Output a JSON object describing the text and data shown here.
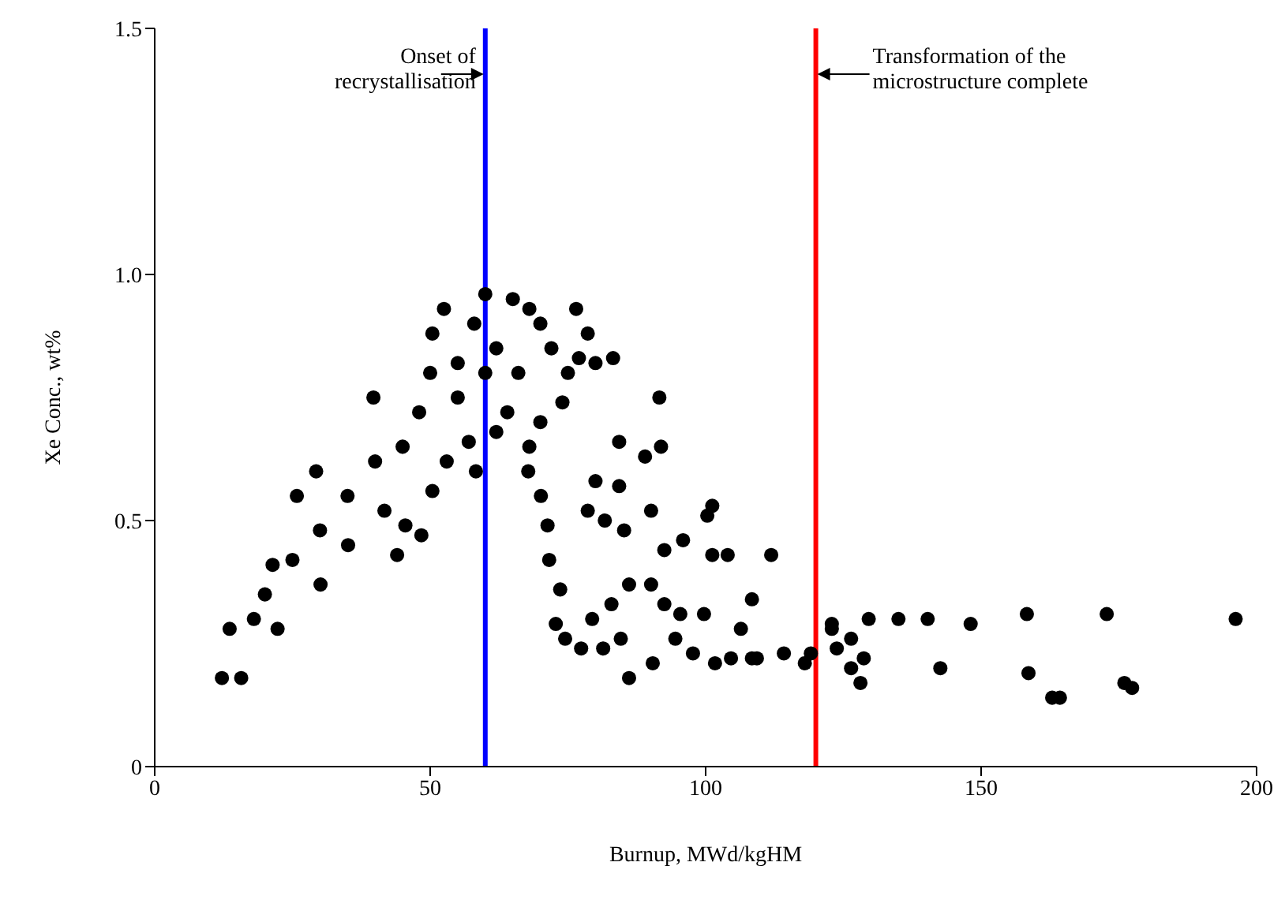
{
  "chart_data": {
    "type": "scatter",
    "xlabel": "Burnup, MWd/kgHM",
    "ylabel": "Xe Conc., wt%",
    "xlim": [
      0,
      200
    ],
    "ylim": [
      0,
      1.5
    ],
    "xticks": [
      0,
      50,
      100,
      150,
      200
    ],
    "yticks": [
      0,
      {
        "value": 0.5,
        "label": "0.5"
      },
      {
        "value": 1,
        "label": "1.0"
      },
      1.5
    ],
    "grid": false,
    "legend": false,
    "marker": "circle",
    "ref_lines": [
      {
        "axis": "x",
        "value": 60,
        "label": "Onset of recrystallisation",
        "color": "#0000ff"
      },
      {
        "axis": "x",
        "value": 120,
        "label": "Transformation of the microstructure complete",
        "color": "#ff0000"
      }
    ],
    "series": [
      {
        "color": "#000000",
        "x": [
          12.2,
          13.6,
          21.4,
          29.3,
          39.7,
          50.4,
          52.5,
          60,
          15.7,
          22.3,
          30.1,
          35.1,
          41.7,
          50.4,
          58.3,
          25.8,
          44,
          45.5,
          48.4,
          45,
          35,
          25,
          18,
          55,
          50,
          58,
          62,
          65,
          68,
          70,
          66,
          64,
          62,
          72,
          75,
          70,
          68,
          77,
          80,
          74,
          60,
          40,
          30,
          20,
          48,
          55,
          57,
          53,
          76.5,
          78.6,
          83.2,
          91.6,
          91.9,
          89,
          84.3,
          67.8,
          70.1,
          71.3,
          71.6,
          73.6,
          72.8,
          74.5,
          77.4,
          81.4,
          84.6,
          79.4,
          82.9,
          86.1,
          90.1,
          78.6,
          81.7,
          85.2,
          84.3,
          80,
          90.1,
          92.5,
          95.9,
          101.2,
          100.3,
          101.2,
          104,
          111.9,
          108.4,
          86.1,
          90.4,
          92.5,
          95.4,
          99.7,
          106.4,
          94.5,
          97.7,
          101.7,
          104.6,
          109.3,
          114.2,
          118,
          119.1,
          122.9,
          122.9,
          129.6,
          135,
          140.3,
          148.1,
          158.3,
          172.8,
          196.2,
          108.4,
          123.8,
          126.4,
          126.4,
          128.1,
          128.7,
          142.6,
          158.6,
          162.9,
          164.3,
          176,
          177.4
        ],
        "values": [
          0.18,
          0.28,
          0.41,
          0.6,
          0.75,
          0.88,
          0.93,
          0.96,
          0.18,
          0.28,
          0.37,
          0.45,
          0.52,
          0.56,
          0.6,
          0.55,
          0.43,
          0.49,
          0.47,
          0.65,
          0.55,
          0.42,
          0.3,
          0.75,
          0.8,
          0.9,
          0.85,
          0.95,
          0.93,
          0.9,
          0.8,
          0.72,
          0.68,
          0.85,
          0.8,
          0.7,
          0.65,
          0.83,
          0.82,
          0.74,
          0.8,
          0.62,
          0.48,
          0.35,
          0.72,
          0.82,
          0.66,
          0.62,
          0.93,
          0.88,
          0.83,
          0.75,
          0.65,
          0.63,
          0.66,
          0.6,
          0.55,
          0.49,
          0.42,
          0.36,
          0.29,
          0.26,
          0.24,
          0.24,
          0.26,
          0.3,
          0.33,
          0.37,
          0.37,
          0.52,
          0.5,
          0.48,
          0.57,
          0.58,
          0.52,
          0.44,
          0.46,
          0.53,
          0.51,
          0.43,
          0.43,
          0.43,
          0.34,
          0.18,
          0.21,
          0.33,
          0.31,
          0.31,
          0.28,
          0.26,
          0.23,
          0.21,
          0.22,
          0.22,
          0.23,
          0.21,
          0.23,
          0.28,
          0.29,
          0.3,
          0.3,
          0.3,
          0.29,
          0.31,
          0.31,
          0.3,
          0.22,
          0.24,
          0.26,
          0.2,
          0.17,
          0.22,
          0.2,
          0.19,
          0.14,
          0.14,
          0.17,
          0.16
        ]
      }
    ]
  }
}
